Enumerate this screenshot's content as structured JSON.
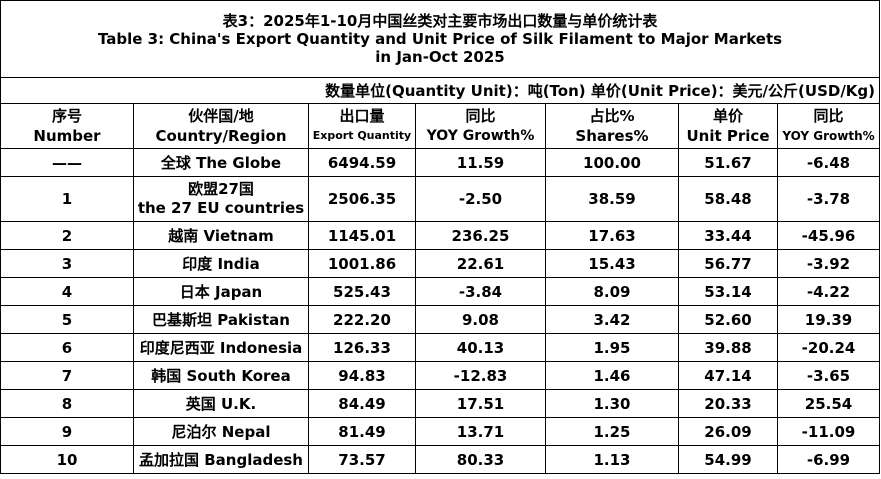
{
  "title_cn": "表3：2025年1-10月中国丝类对主要市场出口数量与单价统计表",
  "title_en_line1": "Table 3: China's Export Quantity and Unit Price of Silk Filament to Major Markets",
  "title_en_line2": "in Jan-Oct 2025",
  "unit_note": "数量单位(Quantity Unit)：吨(Ton)  单价(Unit Price)：美元/公斤(USD/Kg)",
  "headers": {
    "no": {
      "cn": "序号",
      "en": "Number"
    },
    "region": {
      "cn": "伙伴国/地",
      "en": "Country/Region"
    },
    "qty": {
      "cn": "出口量",
      "en": "Export Quantity"
    },
    "qty_yoy": {
      "cn": "同比",
      "en": "YOY Growth%"
    },
    "share": {
      "cn": "占比%",
      "en": "Shares%"
    },
    "price": {
      "cn": "单价",
      "en": "Unit Price"
    },
    "price_yoy": {
      "cn": "同比",
      "en": "YOY Growth%"
    }
  },
  "rows": [
    {
      "no": "——",
      "region": "全球 The Globe",
      "qty": "6494.59",
      "qty_yoy": "11.59",
      "share": "100.00",
      "price": "51.67",
      "price_yoy": "-6.48"
    },
    {
      "no": "1",
      "region": "欧盟27国",
      "region2": "the 27 EU countries",
      "qty": "2506.35",
      "qty_yoy": "-2.50",
      "share": "38.59",
      "price": "58.48",
      "price_yoy": "-3.78"
    },
    {
      "no": "2",
      "region": "越南 Vietnam",
      "qty": "1145.01",
      "qty_yoy": "236.25",
      "share": "17.63",
      "price": "33.44",
      "price_yoy": "-45.96"
    },
    {
      "no": "3",
      "region": "印度 India",
      "qty": "1001.86",
      "qty_yoy": "22.61",
      "share": "15.43",
      "price": "56.77",
      "price_yoy": "-3.92"
    },
    {
      "no": "4",
      "region": "日本 Japan",
      "qty": "525.43",
      "qty_yoy": "-3.84",
      "share": "8.09",
      "price": "53.14",
      "price_yoy": "-4.22"
    },
    {
      "no": "5",
      "region": "巴基斯坦 Pakistan",
      "qty": "222.20",
      "qty_yoy": "9.08",
      "share": "3.42",
      "price": "52.60",
      "price_yoy": "19.39"
    },
    {
      "no": "6",
      "region": "印度尼西亚 Indonesia",
      "qty": "126.33",
      "qty_yoy": "40.13",
      "share": "1.95",
      "price": "39.88",
      "price_yoy": "-20.24"
    },
    {
      "no": "7",
      "region": "韩国 South Korea",
      "qty": "94.83",
      "qty_yoy": "-12.83",
      "share": "1.46",
      "price": "47.14",
      "price_yoy": "-3.65"
    },
    {
      "no": "8",
      "region": "英国 U.K.",
      "qty": "84.49",
      "qty_yoy": "17.51",
      "share": "1.30",
      "price": "20.33",
      "price_yoy": "25.54"
    },
    {
      "no": "9",
      "region": "尼泊尔 Nepal",
      "qty": "81.49",
      "qty_yoy": "13.71",
      "share": "1.25",
      "price": "26.09",
      "price_yoy": "-11.09"
    },
    {
      "no": "10",
      "region": "孟加拉国 Bangladesh",
      "qty": "73.57",
      "qty_yoy": "80.33",
      "share": "1.13",
      "price": "54.99",
      "price_yoy": "-6.99"
    }
  ]
}
